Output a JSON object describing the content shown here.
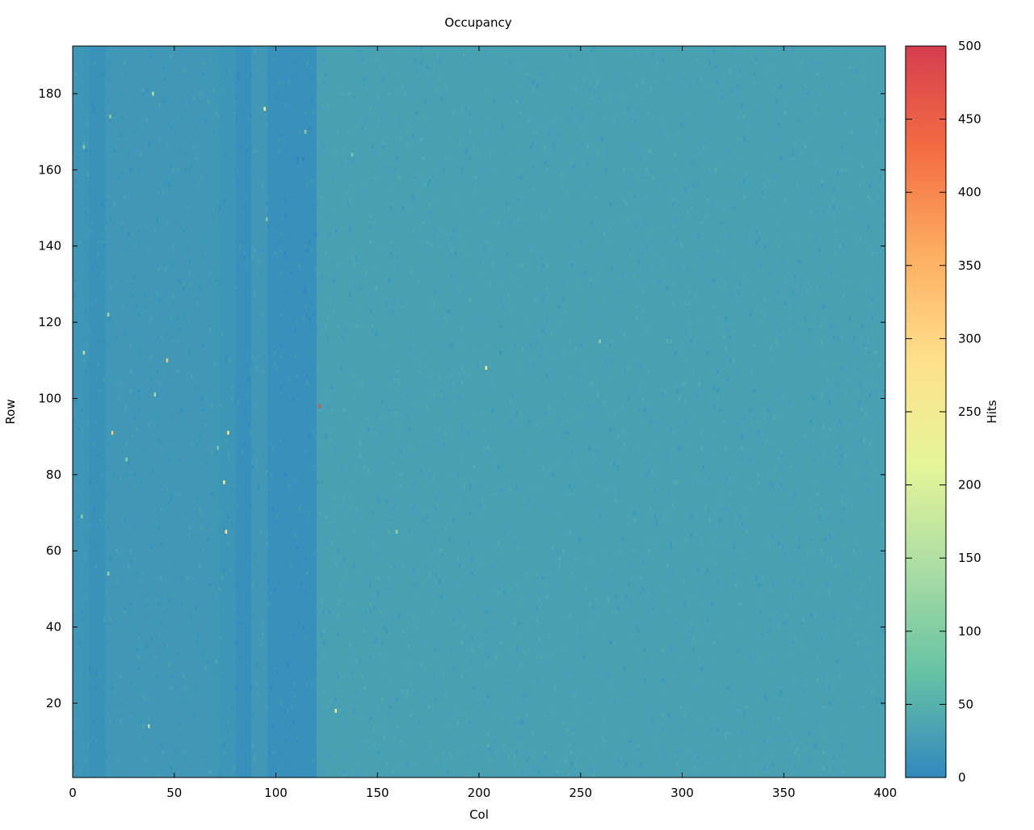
{
  "chart_data": {
    "type": "heatmap",
    "title": "Occupancy",
    "xlabel": "Col",
    "ylabel": "Row",
    "colorbar_label": "Hits",
    "xlim": [
      0,
      400
    ],
    "ylim": [
      1,
      192
    ],
    "clim": [
      0,
      500
    ],
    "x_ticks": [
      0,
      50,
      100,
      150,
      200,
      250,
      300,
      350,
      400
    ],
    "y_ticks": [
      20,
      40,
      60,
      80,
      100,
      120,
      140,
      160,
      180
    ],
    "colorbar_ticks": [
      0,
      50,
      100,
      150,
      200,
      250,
      300,
      350,
      400,
      450,
      500
    ],
    "colormap": [
      "#3288bd",
      "#66c2a5",
      "#abdda4",
      "#e6f598",
      "#fee08b",
      "#fdae61",
      "#f46d43",
      "#d53e4f"
    ],
    "column_bands": [
      {
        "col_start": 0,
        "col_end": 8,
        "hits": 18
      },
      {
        "col_start": 8,
        "col_end": 16,
        "hits": 12
      },
      {
        "col_start": 16,
        "col_end": 72,
        "hits": 20
      },
      {
        "col_start": 72,
        "col_end": 80,
        "hits": 17
      },
      {
        "col_start": 80,
        "col_end": 88,
        "hits": 10
      },
      {
        "col_start": 88,
        "col_end": 96,
        "hits": 20
      },
      {
        "col_start": 96,
        "col_end": 120,
        "hits": 10
      },
      {
        "col_start": 120,
        "col_end": 400,
        "hits": 30
      }
    ],
    "hot_pixels": [
      {
        "col": 39,
        "row": 180,
        "hits": 150
      },
      {
        "col": 94,
        "row": 176,
        "hits": 250
      },
      {
        "col": 18,
        "row": 174,
        "hits": 100
      },
      {
        "col": 114,
        "row": 170,
        "hits": 100
      },
      {
        "col": 5,
        "row": 166,
        "hits": 100
      },
      {
        "col": 137,
        "row": 164,
        "hits": 90
      },
      {
        "col": 17,
        "row": 122,
        "hits": 130
      },
      {
        "col": 5,
        "row": 112,
        "hits": 150
      },
      {
        "col": 46,
        "row": 110,
        "hits": 320
      },
      {
        "col": 203,
        "row": 108,
        "hits": 260
      },
      {
        "col": 259,
        "row": 115,
        "hits": 110
      },
      {
        "col": 40,
        "row": 101,
        "hits": 140
      },
      {
        "col": 121,
        "row": 98,
        "hits": 470
      },
      {
        "col": 19,
        "row": 91,
        "hits": 320
      },
      {
        "col": 76,
        "row": 91,
        "hits": 270
      },
      {
        "col": 26,
        "row": 84,
        "hits": 110
      },
      {
        "col": 74,
        "row": 78,
        "hits": 240
      },
      {
        "col": 4,
        "row": 69,
        "hits": 100
      },
      {
        "col": 75,
        "row": 65,
        "hits": 280
      },
      {
        "col": 159,
        "row": 65,
        "hits": 110
      },
      {
        "col": 17,
        "row": 54,
        "hits": 120
      },
      {
        "col": 129,
        "row": 18,
        "hits": 260
      },
      {
        "col": 37,
        "row": 14,
        "hits": 150
      },
      {
        "col": 71,
        "row": 87,
        "hits": 90
      },
      {
        "col": 95,
        "row": 147,
        "hits": 90
      }
    ]
  }
}
